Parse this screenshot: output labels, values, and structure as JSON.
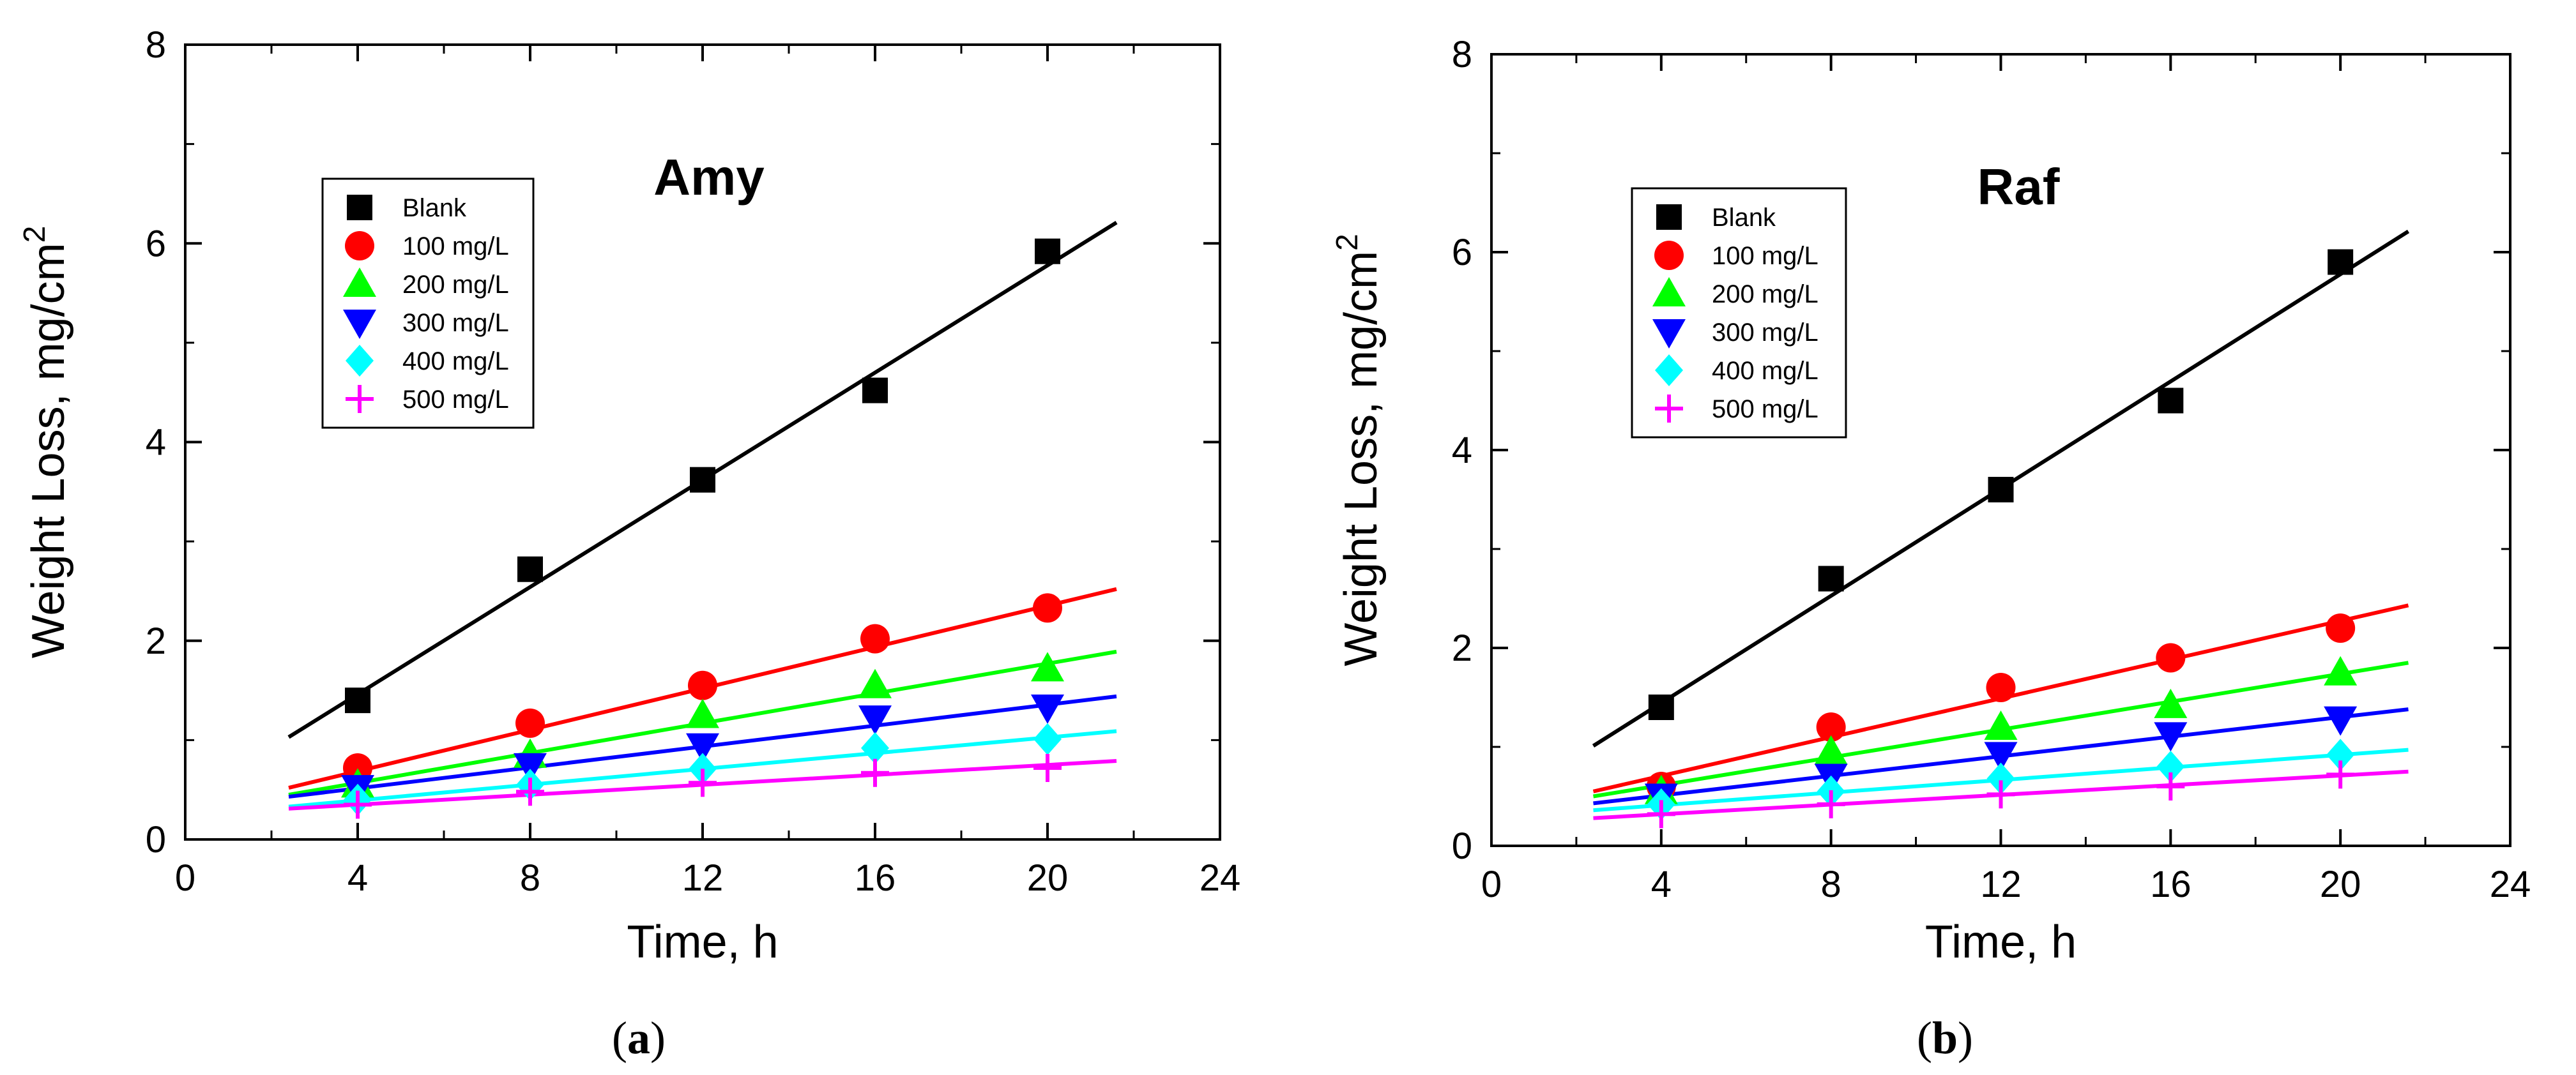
{
  "chart_data": [
    {
      "type": "scatter",
      "title": "Amy",
      "caption_letter": "a",
      "xlabel": "Time, h",
      "ylabel_main": "Weight Loss, mg/cm",
      "ylabel_sup": "2",
      "xlim": [
        0,
        24
      ],
      "ylim": [
        0,
        8
      ],
      "xticks": [
        "0",
        "4",
        "8",
        "12",
        "16",
        "20",
        "24"
      ],
      "yticks": [
        "0",
        "2",
        "4",
        "6",
        "8"
      ],
      "grid": false,
      "legend_placement": "top-left",
      "fit_range": [
        2.4,
        21.6
      ],
      "series": [
        {
          "name": "Blank",
          "marker": "square",
          "color": "#000000",
          "x": [
            4,
            8,
            12,
            16,
            20
          ],
          "y": [
            1.4,
            2.72,
            3.62,
            4.52,
            5.92
          ],
          "fit": [
            1.03,
            6.21
          ]
        },
        {
          "name": "100 mg/L",
          "marker": "circle",
          "color": "#ff0000",
          "x": [
            4,
            8,
            12,
            16,
            20
          ],
          "y": [
            0.72,
            1.17,
            1.55,
            2.02,
            2.33
          ],
          "fit": [
            0.52,
            2.52
          ]
        },
        {
          "name": "200 mg/L",
          "marker": "triangle-up",
          "color": "#00ff00",
          "x": [
            4,
            8,
            12,
            16,
            20
          ],
          "y": [
            0.55,
            0.85,
            1.25,
            1.55,
            1.72
          ],
          "fit": [
            0.45,
            1.89
          ]
        },
        {
          "name": "300 mg/L",
          "marker": "triangle-down",
          "color": "#0000ff",
          "x": [
            4,
            8,
            12,
            16,
            20
          ],
          "y": [
            0.52,
            0.74,
            0.94,
            1.22,
            1.33
          ],
          "fit": [
            0.43,
            1.44
          ]
        },
        {
          "name": "400 mg/L",
          "marker": "diamond",
          "color": "#00ffff",
          "x": [
            4,
            8,
            12,
            16,
            20
          ],
          "y": [
            0.4,
            0.55,
            0.71,
            0.92,
            1.01
          ],
          "fit": [
            0.33,
            1.09
          ]
        },
        {
          "name": "500 mg/L",
          "marker": "plus",
          "color": "#ff00ff",
          "x": [
            4,
            8,
            12,
            16,
            20
          ],
          "y": [
            0.35,
            0.48,
            0.57,
            0.67,
            0.72
          ],
          "fit": [
            0.31,
            0.79
          ]
        }
      ]
    },
    {
      "type": "scatter",
      "title": "Raf",
      "caption_letter": "b",
      "xlabel": "Time, h",
      "ylabel_main": "Weight Loss, mg/cm",
      "ylabel_sup": "2",
      "xlim": [
        0,
        24
      ],
      "ylim": [
        0,
        8
      ],
      "xticks": [
        "0",
        "4",
        "8",
        "12",
        "16",
        "20",
        "24"
      ],
      "yticks": [
        "0",
        "2",
        "4",
        "6",
        "8"
      ],
      "grid": false,
      "legend_placement": "top-left",
      "fit_range": [
        2.4,
        21.6
      ],
      "series": [
        {
          "name": "Blank",
          "marker": "square",
          "color": "#000000",
          "x": [
            4,
            8,
            12,
            16,
            20
          ],
          "y": [
            1.4,
            2.7,
            3.6,
            4.5,
            5.9
          ],
          "fit": [
            1.01,
            6.21
          ]
        },
        {
          "name": "100 mg/L",
          "marker": "circle",
          "color": "#ff0000",
          "x": [
            4,
            8,
            12,
            16,
            20
          ],
          "y": [
            0.6,
            1.2,
            1.6,
            1.9,
            2.2
          ],
          "fit": [
            0.55,
            2.43
          ]
        },
        {
          "name": "200 mg/L",
          "marker": "triangle-up",
          "color": "#00ff00",
          "x": [
            4,
            8,
            12,
            16,
            20
          ],
          "y": [
            0.55,
            0.95,
            1.2,
            1.42,
            1.75
          ],
          "fit": [
            0.5,
            1.85
          ]
        },
        {
          "name": "300 mg/L",
          "marker": "triangle-down",
          "color": "#0000ff",
          "x": [
            4,
            8,
            12,
            16,
            20
          ],
          "y": [
            0.5,
            0.7,
            0.92,
            1.12,
            1.28
          ],
          "fit": [
            0.43,
            1.38
          ]
        },
        {
          "name": "400 mg/L",
          "marker": "diamond",
          "color": "#00ffff",
          "x": [
            4,
            8,
            12,
            16,
            20
          ],
          "y": [
            0.42,
            0.55,
            0.68,
            0.8,
            0.92
          ],
          "fit": [
            0.36,
            0.97
          ]
        },
        {
          "name": "500 mg/L",
          "marker": "plus",
          "color": "#ff00ff",
          "x": [
            4,
            8,
            12,
            16,
            20
          ],
          "y": [
            0.32,
            0.42,
            0.52,
            0.6,
            0.72
          ],
          "fit": [
            0.28,
            0.75
          ]
        }
      ]
    }
  ]
}
